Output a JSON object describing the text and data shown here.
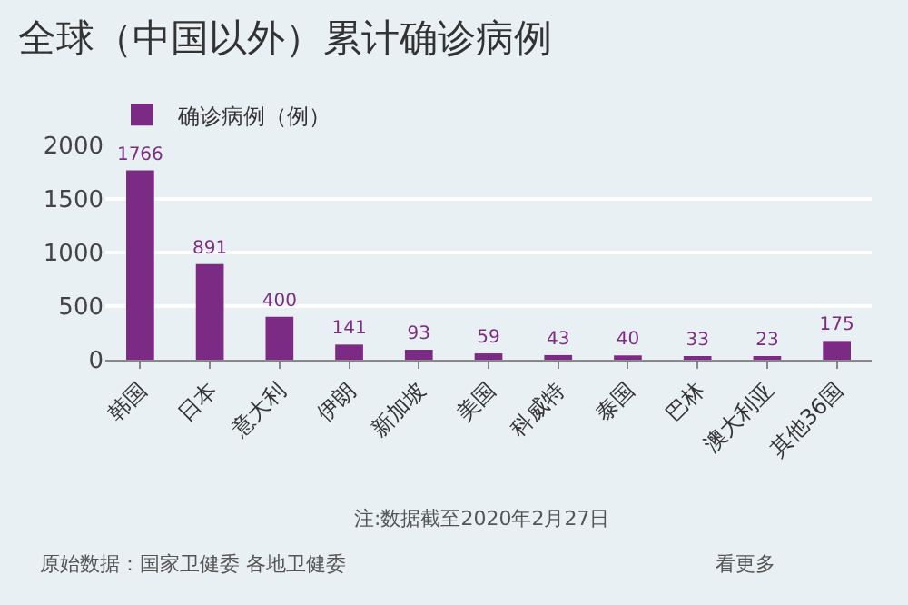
{
  "chart_data": {
    "type": "bar",
    "title": "全球（中国以外）累计确诊病例",
    "categories": [
      "韩国",
      "日本",
      "意大利",
      "伊朗",
      "新加坡",
      "美国",
      "科威特",
      "泰国",
      "巴林",
      "澳大利亚",
      "其他36国"
    ],
    "series": [
      {
        "name": "确诊病例（例）",
        "color": "#7b2b83",
        "values": [
          1766,
          891,
          400,
          141,
          93,
          59,
          43,
          40,
          33,
          23,
          175
        ]
      }
    ],
    "data_labels": true,
    "ylim": [
      0,
      2000
    ],
    "yticks": [
      0,
      500,
      1000,
      1500,
      2000
    ],
    "grid": "y",
    "legend": "top left",
    "annotations": [
      "注:数据截至2020年2月27日",
      "原始数据：国家卫健委 各地卫健委",
      "看更多"
    ]
  }
}
